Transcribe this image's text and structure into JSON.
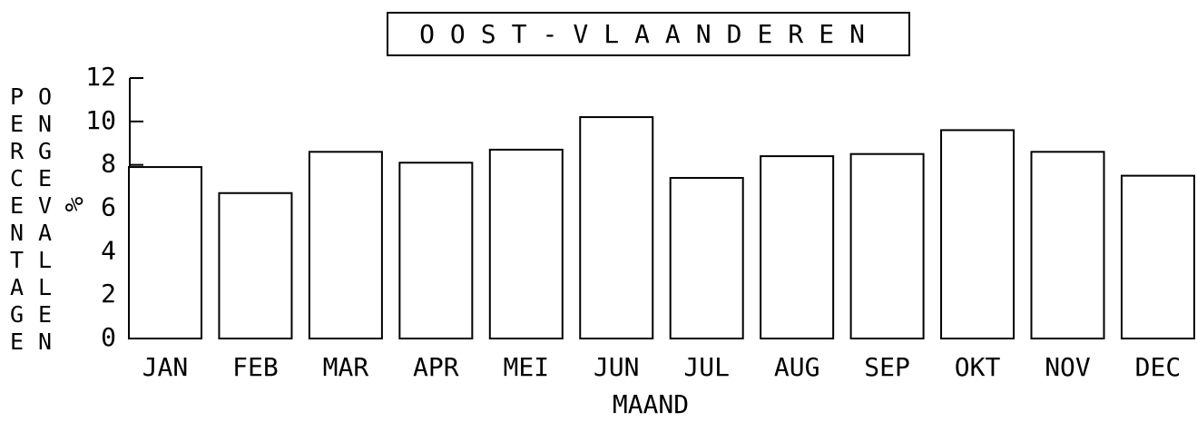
{
  "chart_data": {
    "type": "bar",
    "title": "OOST-VLAANDEREN",
    "ylabel": [
      "PERCENTAGE",
      "ONGEVALLEN"
    ],
    "yunit": "%",
    "xlabel": "MAAND",
    "categories": [
      "JAN",
      "FEB",
      "MAR",
      "APR",
      "MEI",
      "JUN",
      "JUL",
      "AUG",
      "SEP",
      "OKT",
      "NOV",
      "DEC"
    ],
    "values": [
      7.9,
      6.7,
      8.6,
      8.1,
      8.7,
      10.2,
      7.4,
      8.4,
      8.5,
      9.6,
      8.6,
      7.5
    ],
    "color": "#ffffff",
    "ylim": [
      0,
      12
    ],
    "yticks": [
      0,
      2,
      4,
      6,
      8,
      10,
      12
    ],
    "grid": false
  }
}
